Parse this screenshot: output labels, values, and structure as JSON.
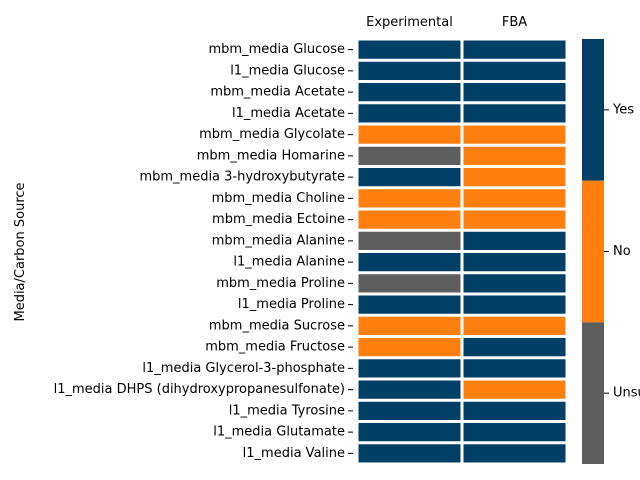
{
  "chart_data": {
    "type": "heatmap",
    "ylabel": "Media/Carbon Source",
    "columns": [
      "Experimental",
      "FBA"
    ],
    "rows": [
      "mbm_media Glucose ",
      "l1_media Glucose ",
      "mbm_media Acetate",
      "l1_media Acetate",
      "mbm_media Glycolate",
      "mbm_media Homarine",
      "mbm_media 3-hydroxybutyrate",
      "mbm_media Choline",
      "mbm_media Ectoine",
      "mbm_media Alanine",
      "l1_media Alanine",
      "mbm_media Proline",
      "l1_media Proline",
      "mbm_media Sucrose",
      "mbm_media Fructose",
      "l1_media Glycerol-3-phosphate",
      "l1_media DHPS (dihydroxypropanesulfonate)",
      "l1_media Tyrosine",
      "l1_media Glutamate",
      "l1_media Valine"
    ],
    "values": [
      [
        "Yes",
        "Yes"
      ],
      [
        "Yes",
        "Yes"
      ],
      [
        "Yes",
        "Yes"
      ],
      [
        "Yes",
        "Yes"
      ],
      [
        "No",
        "No"
      ],
      [
        "Unsure",
        "No"
      ],
      [
        "Yes",
        "No"
      ],
      [
        "No",
        "No"
      ],
      [
        "No",
        "No"
      ],
      [
        "Unsure",
        "Yes"
      ],
      [
        "Yes",
        "Yes"
      ],
      [
        "Unsure",
        "Yes"
      ],
      [
        "Yes",
        "Yes"
      ],
      [
        "No",
        "No"
      ],
      [
        "No",
        "Yes"
      ],
      [
        "Yes",
        "Yes"
      ],
      [
        "Yes",
        "No"
      ],
      [
        "Yes",
        "Yes"
      ],
      [
        "Yes",
        "Yes"
      ],
      [
        "Yes",
        "Yes"
      ]
    ],
    "colorbar": {
      "categories": [
        "Yes",
        "No",
        "Unsure"
      ],
      "colors": {
        "Yes": "#003f66",
        "No": "#ff7f0e",
        "Unsure": "#5e5e5e"
      }
    },
    "grid": false
  }
}
